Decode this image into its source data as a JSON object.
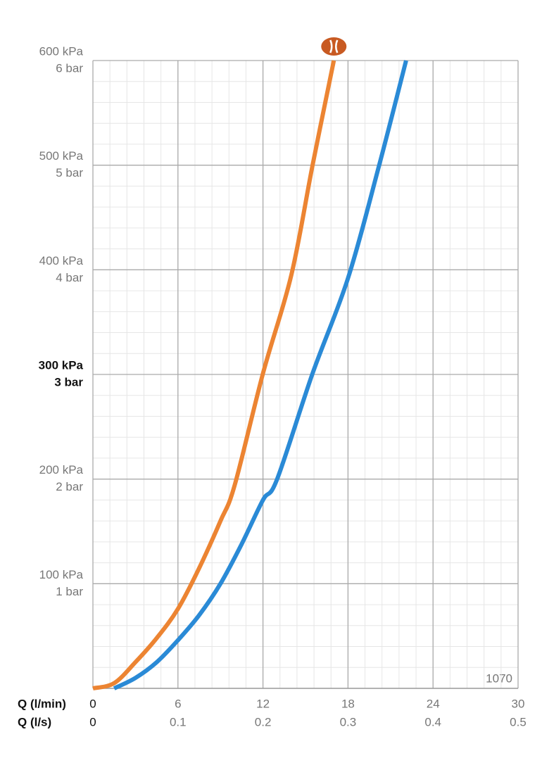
{
  "chart_data": {
    "type": "line",
    "xlabel": "Q (l/min)",
    "x2label": "Q (l/s)",
    "xlim": [
      0,
      30
    ],
    "xticks": [
      0,
      6,
      12,
      18,
      24,
      30
    ],
    "x2lim": [
      0,
      0.5
    ],
    "x2ticks": [
      0,
      0.1,
      0.2,
      0.3,
      0.4,
      0.5
    ],
    "ylim": [
      0,
      600
    ],
    "yticks": [
      {
        "value": 100,
        "label": "100 kPa"
      },
      {
        "value": 200,
        "label": "200 kPa"
      },
      {
        "value": 300,
        "label": "300 kPa"
      },
      {
        "value": 400,
        "label": "400 kPa"
      },
      {
        "value": 500,
        "label": "500 kPa"
      },
      {
        "value": 600,
        "label": "600 kPa"
      }
    ],
    "y2lim": [
      0,
      6
    ],
    "y2ticks": [
      {
        "value": 1,
        "label": "1 bar"
      },
      {
        "value": 2,
        "label": "2 bar"
      },
      {
        "value": 3,
        "label": "3 bar"
      },
      {
        "value": 4,
        "label": "4 bar"
      },
      {
        "value": 5,
        "label": "5 bar"
      },
      {
        "value": 6,
        "label": "6 bar"
      }
    ],
    "emphasized_ytick": 300,
    "grid": true,
    "xminor": 1.2,
    "yminor": 20,
    "annotation": "1070",
    "series": [
      {
        "color": "#ec8432",
        "x": [
          0,
          1.5,
          3,
          4.5,
          6,
          7.5,
          9,
          10,
          12,
          14,
          15.5,
          17
        ],
        "values": [
          0,
          5,
          25,
          48,
          76,
          115,
          160,
          194,
          301,
          395,
          500,
          600
        ]
      },
      {
        "color": "#2a8ad6",
        "x": [
          1.5,
          3,
          4.5,
          6,
          7.5,
          9,
          10.5,
          12,
          13,
          15.5,
          18,
          20.2,
          22.1
        ],
        "values": [
          0,
          10,
          25,
          46,
          70,
          100,
          138,
          180,
          200,
          301,
          392,
          500,
          600
        ]
      }
    ]
  }
}
